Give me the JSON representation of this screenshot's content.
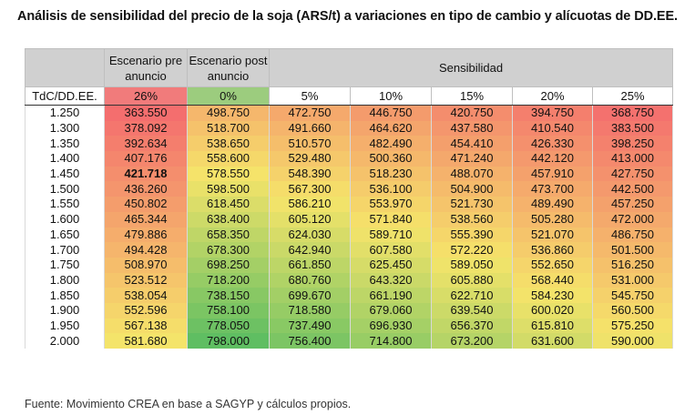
{
  "title": "Análisis de sensibilidad del precio de la soja (ARS/t) a variaciones en tipo de cambio y alícuotas de DD.EE.",
  "header": {
    "corner_label": "TdC/DD.EE.",
    "pre_label": "Escenario pre anuncio",
    "post_label": "Escenario post anuncio",
    "sensitivity_label": "Sensibilidad",
    "columns": [
      "26%",
      "0%",
      "5%",
      "10%",
      "15%",
      "20%",
      "25%"
    ]
  },
  "source": "Fuente: Movimiento CREA en base a SAGYP y cálculos propios.",
  "colors": {
    "low": "#f46e6e",
    "mid": "#f5e46a",
    "high": "#5fbe62",
    "pre_header": "#f17b7b",
    "post_header": "#9ccc7e",
    "header_gray": "#d0d0d0"
  },
  "chart_data": {
    "type": "heatmap",
    "title": "Análisis de sensibilidad del precio de la soja (ARS/t) a variaciones en tipo de cambio y alícuotas de DD.EE.",
    "row_label": "TdC/DD.EE.",
    "columns": [
      "26%",
      "0%",
      "5%",
      "10%",
      "15%",
      "20%",
      "25%"
    ],
    "column_groups": [
      {
        "name": "Escenario pre anuncio",
        "columns": [
          "26%"
        ]
      },
      {
        "name": "Escenario post anuncio",
        "columns": [
          "0%"
        ]
      },
      {
        "name": "Sensibilidad",
        "columns": [
          "5%",
          "10%",
          "15%",
          "20%",
          "25%"
        ]
      }
    ],
    "rows": [
      {
        "tdc": "1.250",
        "values": [
          "363.550",
          "498.750",
          "472.750",
          "446.750",
          "420.750",
          "394.750",
          "368.750"
        ]
      },
      {
        "tdc": "1.300",
        "values": [
          "378.092",
          "518.700",
          "491.660",
          "464.620",
          "437.580",
          "410.540",
          "383.500"
        ]
      },
      {
        "tdc": "1.350",
        "values": [
          "392.634",
          "538.650",
          "510.570",
          "482.490",
          "454.410",
          "426.330",
          "398.250"
        ]
      },
      {
        "tdc": "1.400",
        "values": [
          "407.176",
          "558.600",
          "529.480",
          "500.360",
          "471.240",
          "442.120",
          "413.000"
        ]
      },
      {
        "tdc": "1.450",
        "values": [
          "421.718",
          "578.550",
          "548.390",
          "518.230",
          "488.070",
          "457.910",
          "427.750"
        ],
        "bold_first": true
      },
      {
        "tdc": "1.500",
        "values": [
          "436.260",
          "598.500",
          "567.300",
          "536.100",
          "504.900",
          "473.700",
          "442.500"
        ]
      },
      {
        "tdc": "1.550",
        "values": [
          "450.802",
          "618.450",
          "586.210",
          "553.970",
          "521.730",
          "489.490",
          "457.250"
        ]
      },
      {
        "tdc": "1.600",
        "values": [
          "465.344",
          "638.400",
          "605.120",
          "571.840",
          "538.560",
          "505.280",
          "472.000"
        ]
      },
      {
        "tdc": "1.650",
        "values": [
          "479.886",
          "658.350",
          "624.030",
          "589.710",
          "555.390",
          "521.070",
          "486.750"
        ]
      },
      {
        "tdc": "1.700",
        "values": [
          "494.428",
          "678.300",
          "642.940",
          "607.580",
          "572.220",
          "536.860",
          "501.500"
        ]
      },
      {
        "tdc": "1.750",
        "values": [
          "508.970",
          "698.250",
          "661.850",
          "625.450",
          "589.050",
          "552.650",
          "516.250"
        ]
      },
      {
        "tdc": "1.800",
        "values": [
          "523.512",
          "718.200",
          "680.760",
          "643.320",
          "605.880",
          "568.440",
          "531.000"
        ]
      },
      {
        "tdc": "1.850",
        "values": [
          "538.054",
          "738.150",
          "699.670",
          "661.190",
          "622.710",
          "584.230",
          "545.750"
        ]
      },
      {
        "tdc": "1.900",
        "values": [
          "552.596",
          "758.100",
          "718.580",
          "679.060",
          "639.540",
          "600.020",
          "560.500"
        ]
      },
      {
        "tdc": "1.950",
        "values": [
          "567.138",
          "778.050",
          "737.490",
          "696.930",
          "656.370",
          "615.810",
          "575.250"
        ]
      },
      {
        "tdc": "2.000",
        "values": [
          "581.680",
          "798.000",
          "756.400",
          "714.800",
          "673.200",
          "631.600",
          "590.000"
        ]
      }
    ]
  }
}
